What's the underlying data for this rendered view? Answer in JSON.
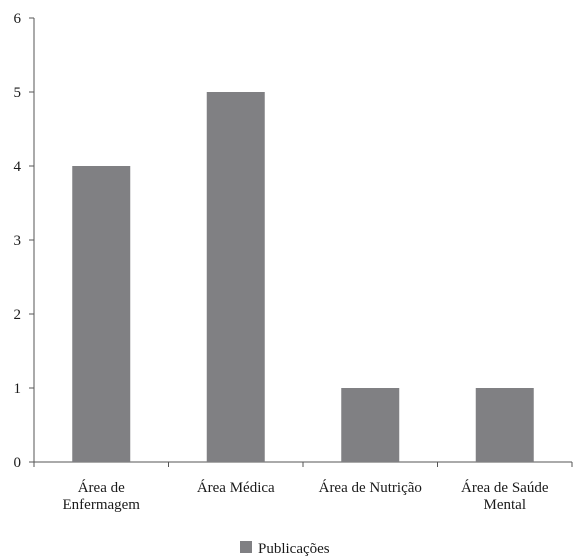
{
  "chart_data": {
    "type": "bar",
    "categories": [
      [
        "Área de",
        "Enfermagem"
      ],
      [
        "Área Médica"
      ],
      [
        "Área de Nutrição"
      ],
      [
        "Área de Saúde",
        "Mental"
      ]
    ],
    "series": [
      {
        "name": "Publicações",
        "values": [
          4,
          5,
          1,
          1
        ],
        "color": "#808083"
      }
    ],
    "ylim": [
      0,
      6
    ],
    "yticks": [
      0,
      1,
      2,
      3,
      4,
      5,
      6
    ],
    "grid": false,
    "legend": "bottom-center"
  }
}
